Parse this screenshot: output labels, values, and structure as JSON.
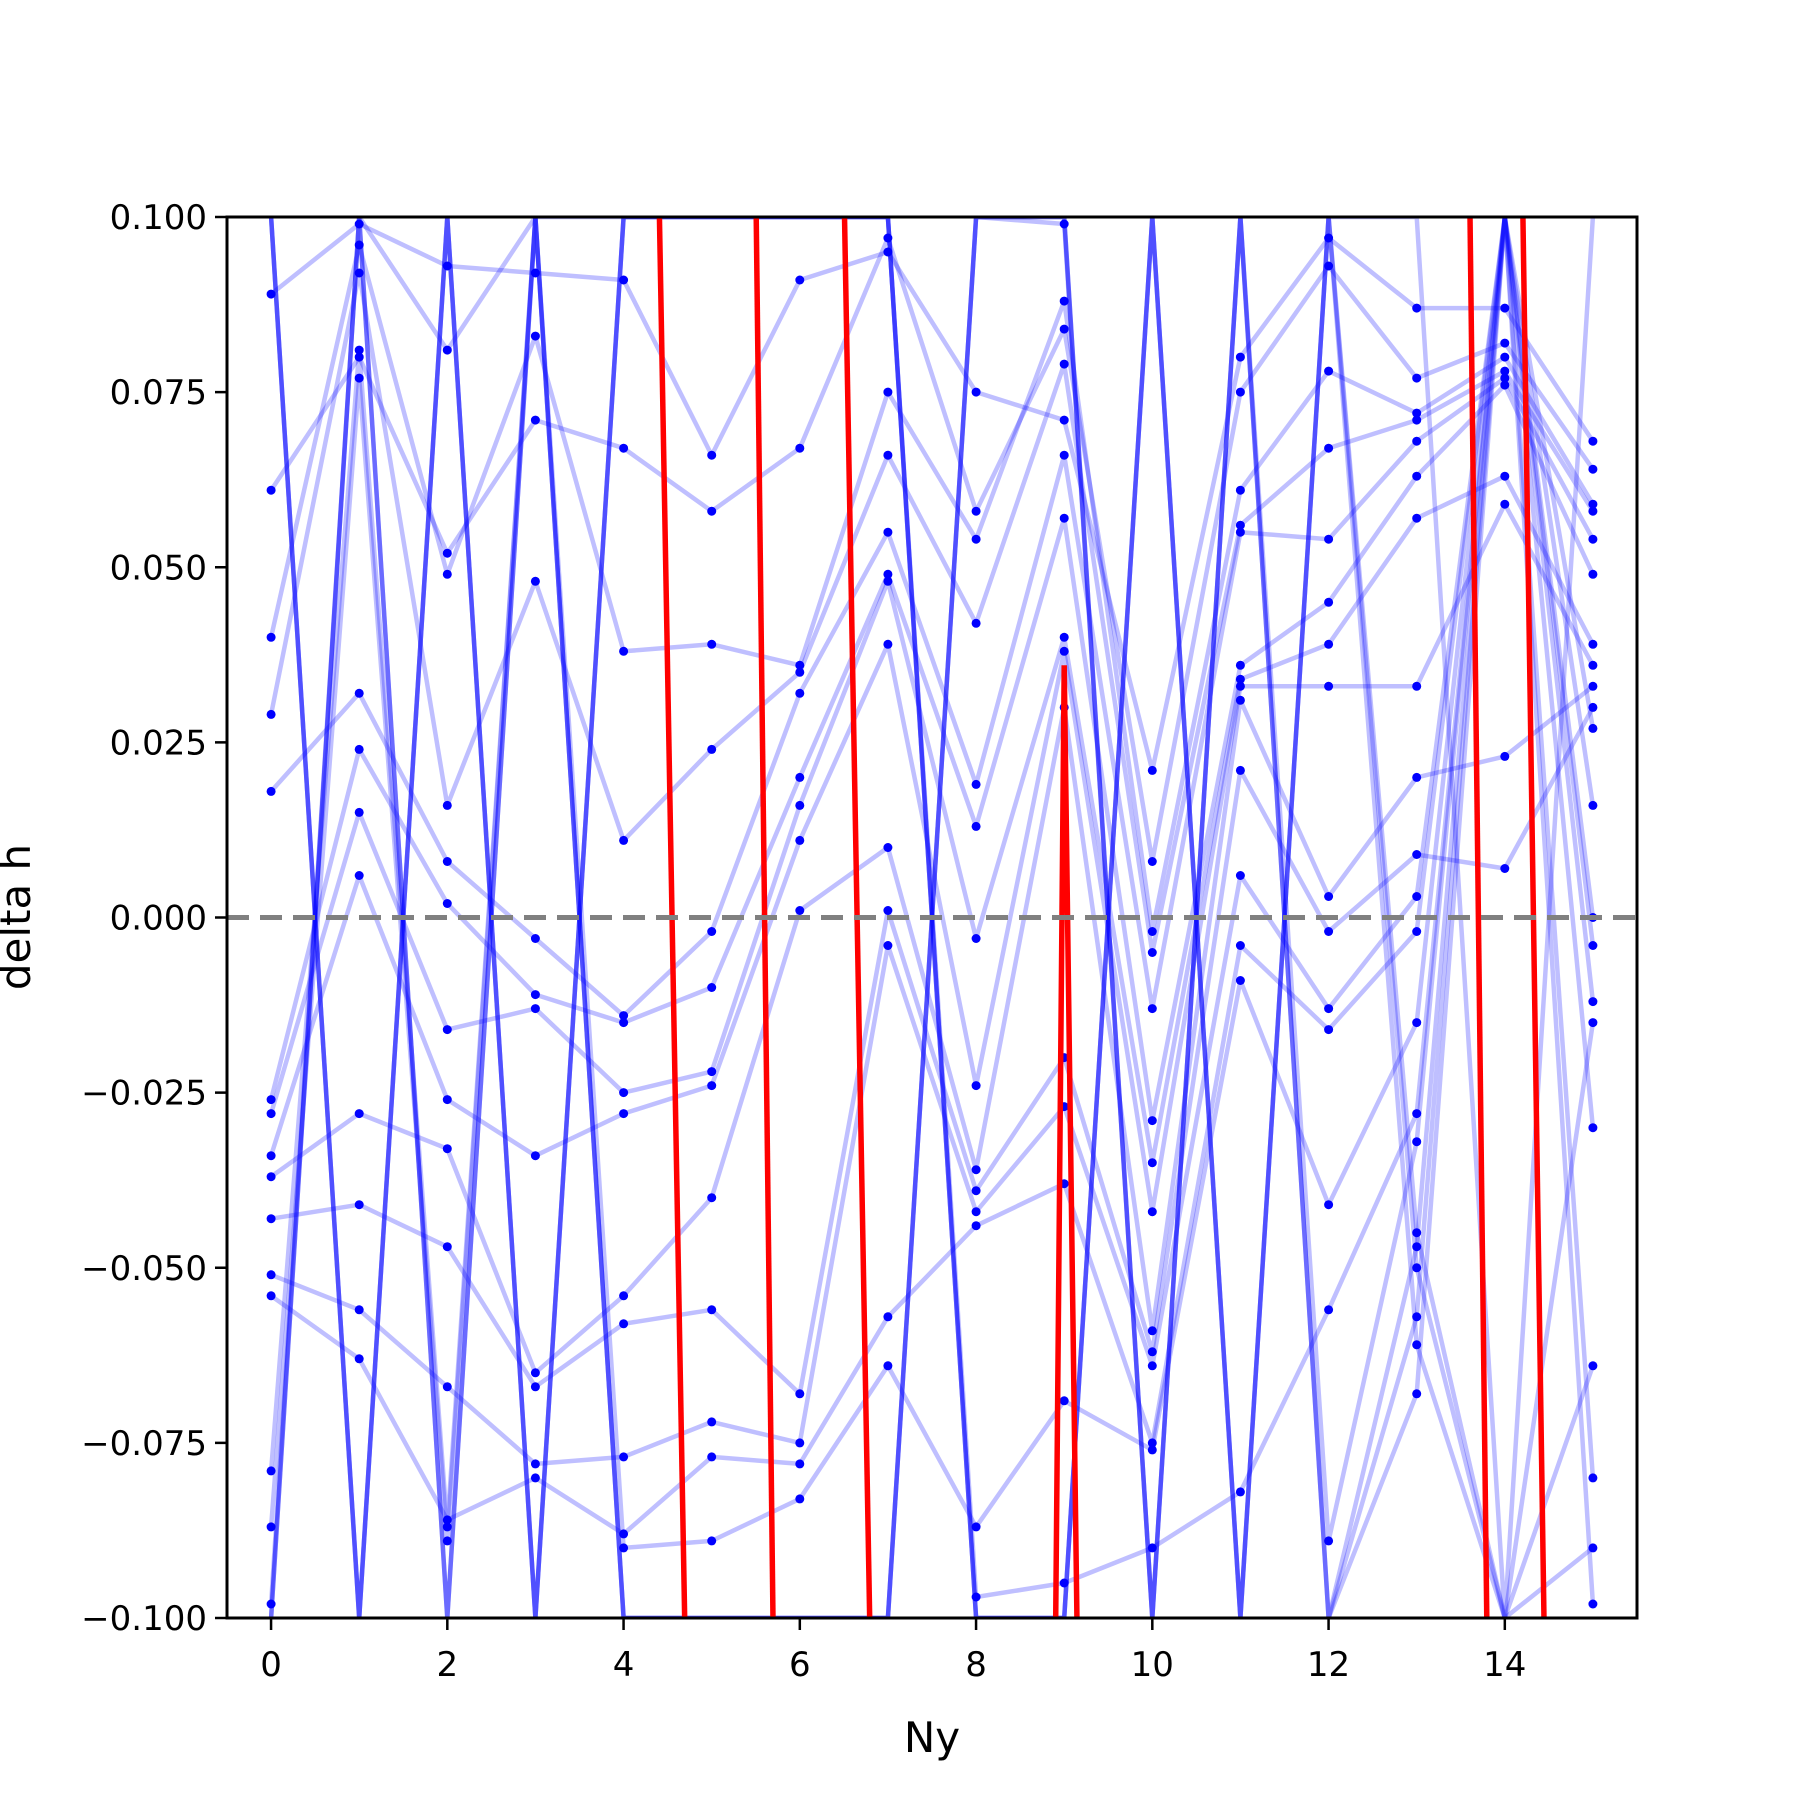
{
  "chart_data": {
    "type": "line",
    "xlabel": "Ny",
    "ylabel": "delta h",
    "xlim": [
      -0.5,
      15.5
    ],
    "ylim": [
      -0.1,
      0.1
    ],
    "x_ticks": [
      0,
      2,
      4,
      6,
      8,
      10,
      12,
      14
    ],
    "x_tick_labels": [
      "0",
      "2",
      "4",
      "6",
      "8",
      "10",
      "12",
      "14"
    ],
    "y_ticks": [
      -0.1,
      -0.075,
      -0.05,
      -0.025,
      0.0,
      0.025,
      0.05,
      0.075,
      0.1
    ],
    "y_tick_labels": [
      "−0.100",
      "−0.075",
      "−0.050",
      "−0.025",
      "0.000",
      "0.025",
      "0.050",
      "0.075",
      "0.100"
    ],
    "reference_line": {
      "y": 0.0,
      "style": "dashed",
      "color": "#808080"
    },
    "colors": {
      "trajectories": "#0000ff",
      "highlight": "#ff0000"
    },
    "grid": false,
    "x": [
      0,
      1,
      2,
      3,
      4,
      5,
      6,
      7,
      8,
      9,
      10,
      11,
      12,
      13,
      14,
      15
    ],
    "series": [
      {
        "values": [
          0.089,
          0.099,
          0.093,
          0.092,
          0.091,
          0.066,
          0.091,
          0.095,
          0.075,
          0.071,
          0.021,
          0.08,
          0.097,
          0.087,
          0.087,
          0.068
        ]
      },
      {
        "values": [
          0.061,
          0.08,
          0.052,
          0.071,
          0.067,
          0.058,
          0.067,
          0.097,
          0.058,
          0.084,
          0.008,
          0.075,
          0.093,
          0.077,
          0.082,
          0.064
        ]
      },
      {
        "values": [
          0.04,
          0.096,
          0.049,
          0.083,
          0.038,
          0.039,
          0.036,
          0.075,
          0.054,
          0.088,
          -0.002,
          0.061,
          0.078,
          0.072,
          0.08,
          0.059
        ]
      },
      {
        "values": [
          0.029,
          0.092,
          0.016,
          0.048,
          0.011,
          0.024,
          0.035,
          0.066,
          0.042,
          0.079,
          -0.005,
          0.056,
          0.067,
          0.071,
          0.078,
          0.058
        ]
      },
      {
        "values": [
          0.018,
          0.032,
          0.008,
          -0.003,
          -0.014,
          -0.002,
          0.032,
          0.055,
          0.019,
          0.066,
          -0.013,
          0.055,
          0.054,
          0.068,
          0.077,
          0.054
        ]
      },
      {
        "values": [
          -0.026,
          0.024,
          0.002,
          -0.011,
          -0.015,
          -0.01,
          0.02,
          0.049,
          0.013,
          0.057,
          -0.029,
          0.036,
          0.045,
          0.063,
          0.076,
          0.049
        ]
      },
      {
        "values": [
          -0.028,
          0.015,
          -0.016,
          -0.013,
          -0.025,
          -0.022,
          0.016,
          0.048,
          -0.003,
          0.04,
          -0.035,
          0.034,
          0.039,
          0.057,
          0.063,
          0.039
        ]
      },
      {
        "values": [
          -0.034,
          0.006,
          -0.026,
          -0.034,
          -0.028,
          -0.024,
          0.011,
          0.039,
          -0.024,
          0.038,
          -0.042,
          0.033,
          0.033,
          0.033,
          0.059,
          0.036
        ]
      },
      {
        "values": [
          -0.037,
          -0.028,
          -0.033,
          -0.065,
          -0.054,
          -0.04,
          0.001,
          0.01,
          -0.036,
          0.03,
          -0.059,
          0.031,
          0.003,
          0.02,
          0.023,
          0.033
        ]
      },
      {
        "values": [
          -0.043,
          -0.041,
          -0.047,
          -0.067,
          -0.058,
          -0.056,
          -0.068,
          0.001,
          -0.039,
          -0.02,
          -0.062,
          0.021,
          -0.002,
          0.009,
          0.007,
          0.03
        ]
      },
      {
        "values": [
          -0.051,
          -0.056,
          -0.067,
          -0.078,
          -0.077,
          -0.072,
          -0.075,
          -0.004,
          -0.042,
          -0.027,
          -0.064,
          0.006,
          -0.013,
          0.003,
          0.1,
          0.027
        ]
      },
      {
        "values": [
          -0.054,
          -0.063,
          -0.086,
          -0.08,
          -0.088,
          -0.077,
          -0.078,
          -0.057,
          -0.044,
          -0.038,
          -0.075,
          -0.004,
          -0.016,
          -0.002,
          0.1,
          0.016
        ]
      },
      {
        "values": [
          -0.079,
          0.081,
          -0.087,
          0.1,
          -0.09,
          -0.089,
          -0.083,
          -0.064,
          -0.087,
          -0.069,
          -0.076,
          -0.009,
          -0.041,
          -0.015,
          0.1,
          0.0
        ]
      },
      {
        "values": [
          -0.087,
          0.077,
          -0.089,
          0.1,
          0.1,
          0.1,
          0.1,
          0.1,
          -0.097,
          -0.095,
          -0.09,
          -0.082,
          -0.056,
          -0.028,
          0.1,
          -0.004
        ]
      },
      {
        "values": [
          -0.098,
          0.1,
          0.081,
          0.1,
          -0.1,
          -0.1,
          -0.1,
          -0.1,
          0.1,
          0.099,
          -0.1,
          0.1,
          -0.089,
          -0.032,
          0.1,
          -0.012
        ]
      },
      {
        "values": [
          0.1,
          -0.1,
          0.1,
          -0.1,
          0.1,
          0.1,
          0.1,
          0.1,
          -0.1,
          -0.1,
          0.1,
          -0.1,
          0.1,
          -0.045,
          -0.1,
          -0.015
        ]
      },
      {
        "values": [
          -0.1,
          0.1,
          -0.1,
          0.1,
          -0.1,
          -0.1,
          -0.1,
          -0.1,
          0.1,
          0.1,
          -0.1,
          0.1,
          -0.1,
          -0.047,
          0.1,
          -0.03
        ]
      },
      {
        "values": [
          0.1,
          -0.1,
          0.1,
          -0.1,
          0.1,
          0.1,
          0.1,
          0.1,
          -0.1,
          -0.1,
          0.1,
          -0.1,
          0.1,
          -0.05,
          -0.1,
          -0.064
        ]
      },
      {
        "values": [
          -0.1,
          0.1,
          -0.1,
          0.1,
          -0.1,
          -0.1,
          -0.1,
          -0.1,
          0.1,
          0.1,
          -0.1,
          0.1,
          -0.1,
          -0.057,
          0.1,
          -0.08
        ]
      },
      {
        "values": [
          0.1,
          -0.1,
          0.1,
          -0.1,
          0.1,
          0.1,
          0.1,
          0.1,
          -0.1,
          -0.1,
          0.1,
          -0.1,
          0.1,
          -0.061,
          -0.1,
          -0.09
        ]
      },
      {
        "values": [
          -0.1,
          0.1,
          -0.1,
          0.1,
          -0.1,
          -0.1,
          -0.1,
          -0.1,
          0.1,
          0.1,
          -0.1,
          0.1,
          -0.1,
          -0.068,
          0.1,
          -0.098
        ]
      },
      {
        "values": [
          0.1,
          -0.1,
          0.1,
          -0.1,
          0.1,
          0.1,
          0.1,
          0.1,
          -0.1,
          -0.1,
          0.1,
          -0.1,
          0.1,
          0.1,
          -0.1,
          0.1
        ]
      }
    ],
    "highlight_series": [
      {
        "values": [
          4.4,
          4.7
        ]
      },
      {
        "values": [
          5.5,
          5.7
        ]
      },
      {
        "values": [
          6.5,
          6.8
        ]
      },
      {
        "values": [
          8.9,
          9.0,
          9.15
        ]
      },
      {
        "values": [
          13.6,
          13.8
        ]
      },
      {
        "values": [
          14.2,
          14.45
        ]
      }
    ]
  }
}
